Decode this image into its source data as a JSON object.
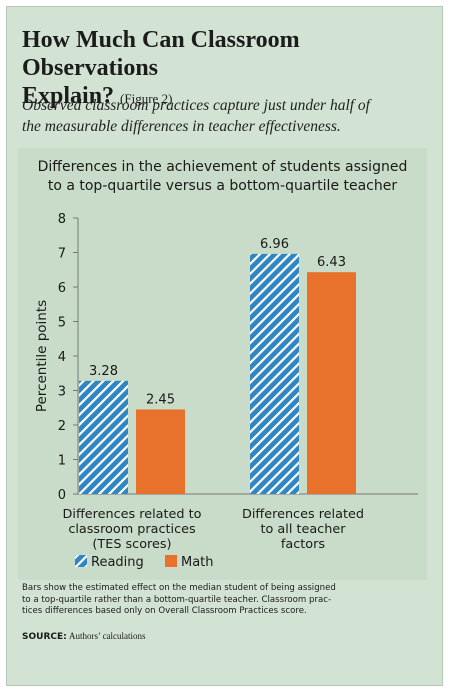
{
  "title": {
    "main": "How Much Can Classroom Observations",
    "line2": "Explain?",
    "figure": "(Figure 2)"
  },
  "subtitle": {
    "line1": "Observed classroom practices capture just under half of",
    "line2": "the measurable differences in teacher effectiveness."
  },
  "colors": {
    "reading": "#2f86c3",
    "math": "#e8722c",
    "panel": "#d3e3d3",
    "chart_bg": "#c8dcc9"
  },
  "chart_data": {
    "type": "bar",
    "title_lines": [
      "Differences in the achievement of students assigned",
      "to a top-quartile versus a bottom-quartile teacher"
    ],
    "ylabel": "Percentile points",
    "ylim": [
      0,
      8
    ],
    "yticks": [
      0,
      1,
      2,
      3,
      4,
      5,
      6,
      7,
      8
    ],
    "categories": [
      [
        "Differences related to",
        "classroom practices",
        "(TES scores)"
      ],
      [
        "Differences related",
        "to all teacher",
        "factors"
      ]
    ],
    "series": [
      {
        "name": "Reading",
        "values": [
          3.28,
          6.96
        ],
        "labels": [
          "3.28",
          "6.96"
        ],
        "pattern": "diagonal-stripes"
      },
      {
        "name": "Math",
        "values": [
          2.45,
          6.43
        ],
        "labels": [
          "2.45",
          "6.43"
        ],
        "pattern": "solid"
      }
    ],
    "legend_position": "bottom-left"
  },
  "note": {
    "line1": "Bars show the estimated effect on the median student of being assigned",
    "line2": "to a top-quartile rather than a bottom-quartile teacher. Classroom prac-",
    "line3": "tices differences based only on Overall Classroom Practices score."
  },
  "source": {
    "label": "SOURCE:",
    "text": "Authors’ calculations"
  }
}
